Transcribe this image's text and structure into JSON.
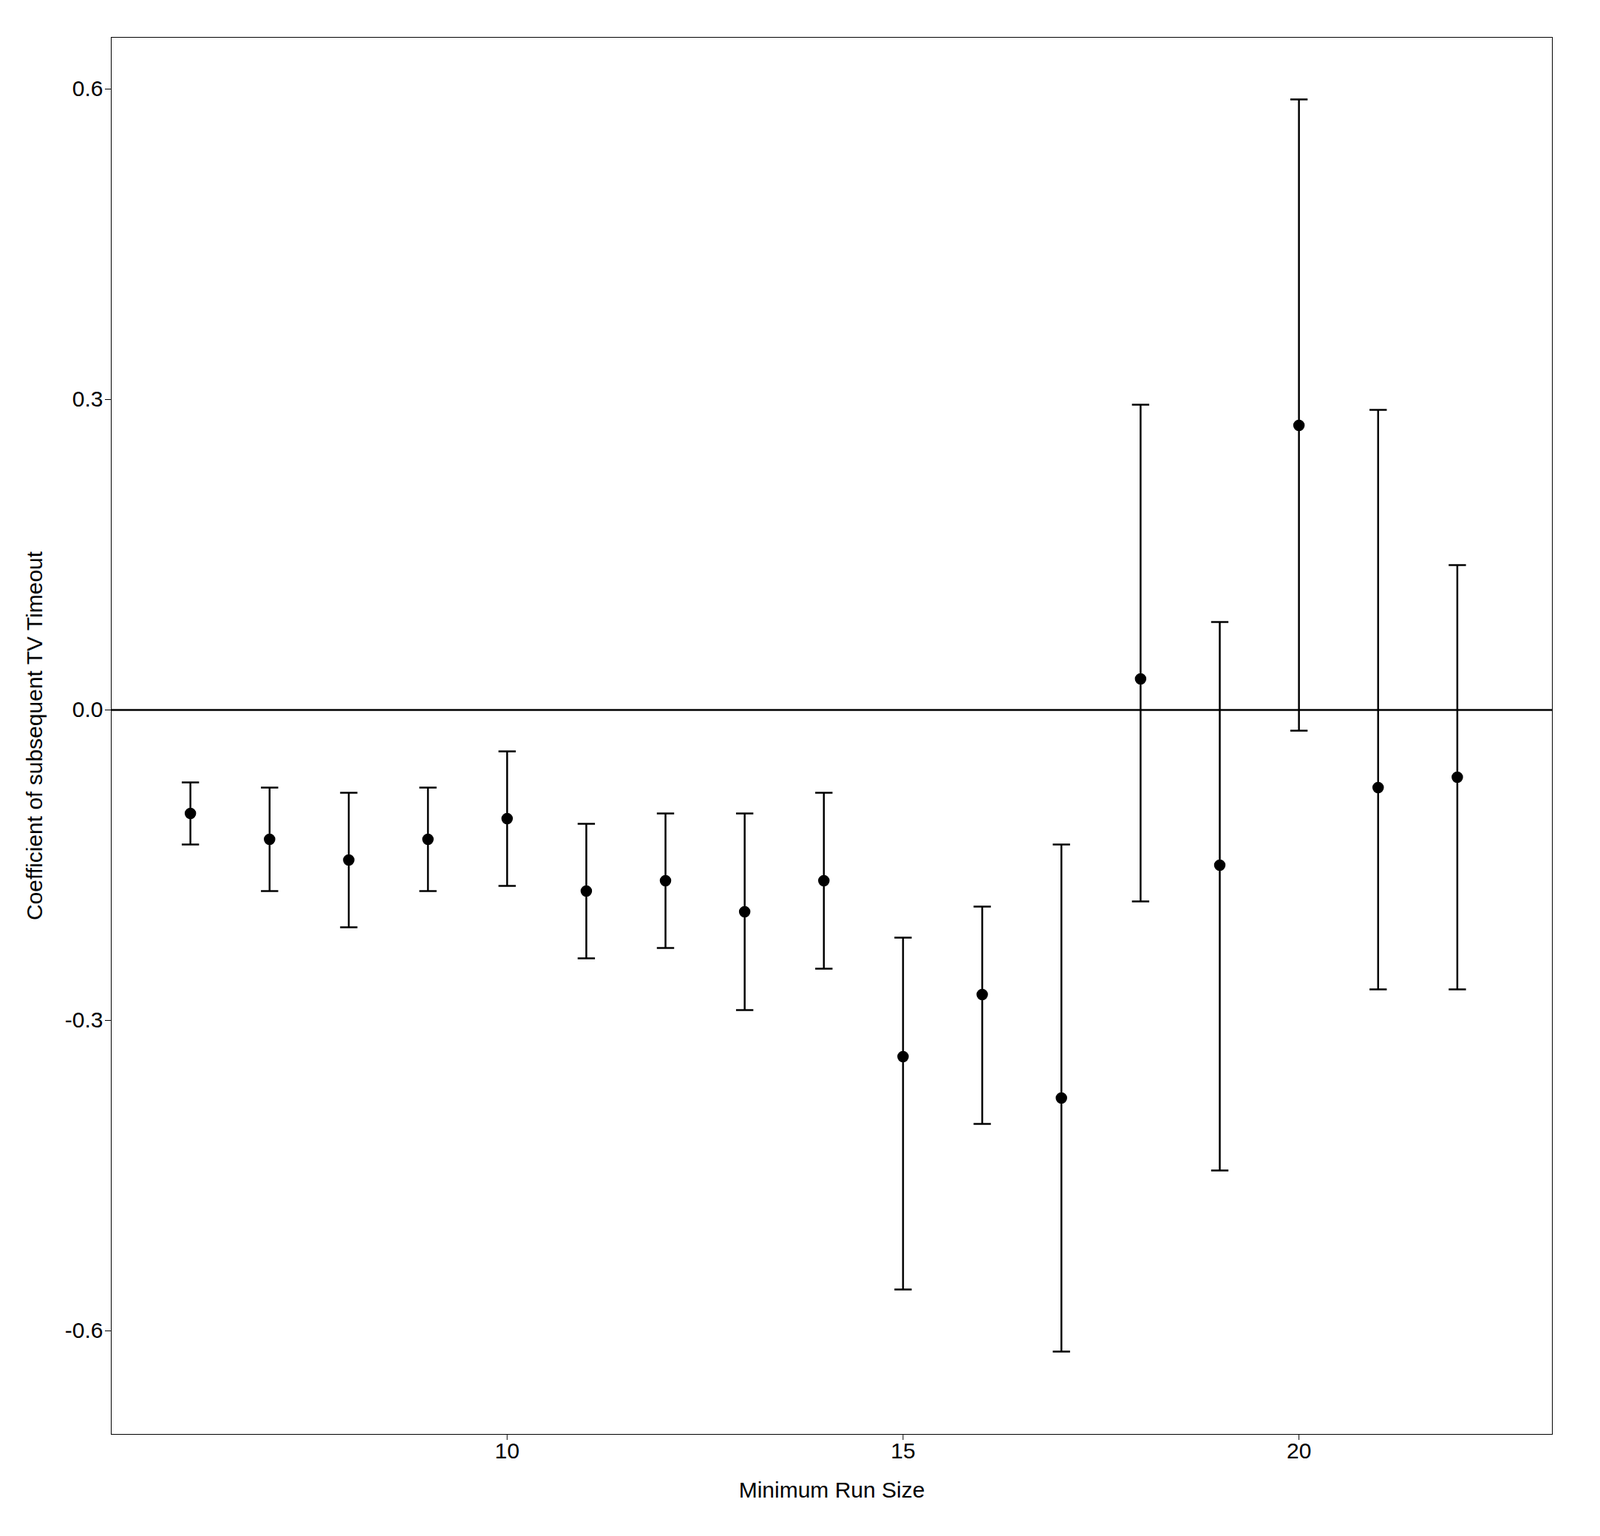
{
  "chart_data": {
    "type": "errorbar",
    "xlabel": "Minimum Run Size",
    "ylabel": "Coefficient of subsequent TV Timeout",
    "x": [
      6,
      7,
      8,
      9,
      10,
      11,
      12,
      13,
      14,
      15,
      16,
      17,
      18,
      19,
      20,
      21,
      22
    ],
    "values": [
      -0.1,
      -0.125,
      -0.145,
      -0.125,
      -0.105,
      -0.175,
      -0.165,
      -0.195,
      -0.165,
      -0.335,
      -0.275,
      -0.375,
      0.03,
      -0.15,
      0.275,
      -0.075,
      -0.065
    ],
    "yerr_low": [
      0.03,
      0.05,
      0.065,
      0.05,
      0.065,
      0.065,
      0.065,
      0.095,
      0.085,
      0.225,
      0.125,
      0.245,
      0.215,
      0.295,
      0.295,
      0.195,
      0.205
    ],
    "yerr_high": [
      0.03,
      0.05,
      0.065,
      0.05,
      0.065,
      0.065,
      0.065,
      0.095,
      0.085,
      0.115,
      0.085,
      0.245,
      0.265,
      0.235,
      0.315,
      0.365,
      0.205
    ],
    "hline": 0.0,
    "xlim": [
      5.0,
      23.2
    ],
    "ylim": [
      -0.7,
      0.65
    ],
    "xticks": [
      10,
      15,
      20
    ],
    "yticks": [
      -0.6,
      -0.3,
      {
        "value": 0.0,
        "label": "0.0"
      },
      0.3,
      0.6
    ],
    "color": "#000000",
    "marker": "circle",
    "grid": false
  }
}
